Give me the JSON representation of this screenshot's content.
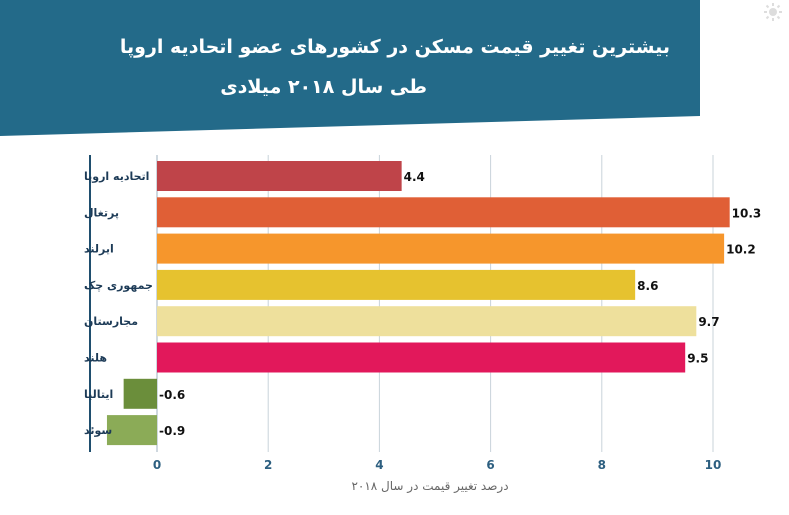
{
  "title_line1": "بیشترین تغییر قیمت مسکن در کشورهای عضو اتحادیه اروپا",
  "title_line2": "طی سال ۲۰۱۸ میلادی",
  "chart_data": {
    "type": "bar",
    "orientation": "horizontal",
    "categories": [
      "اتحادیه اروپا",
      "پرتغال",
      "ایرلند",
      "جمهوری چک",
      "مجارستان",
      "هلند",
      "ایتالیا",
      "سوئد"
    ],
    "values": [
      4.4,
      10.3,
      10.2,
      8.6,
      9.7,
      9.5,
      -0.6,
      -0.9
    ],
    "value_labels": [
      "4.4",
      "10.3",
      "10.2",
      "8.6",
      "9.7",
      "9.5",
      "-0.6",
      "-0.9"
    ],
    "colors": [
      "#bf4449",
      "#e05f36",
      "#f6962c",
      "#e6c22f",
      "#eee09c",
      "#e2185b",
      "#6b8e3b",
      "#8bab57"
    ],
    "xticks": [
      0,
      2,
      4,
      6,
      8,
      10
    ],
    "xlim": [
      -1.0,
      10.8
    ],
    "xlabel": "درصد تغییر قیمت در سال ۲۰۱۸",
    "grid": "vertical"
  }
}
